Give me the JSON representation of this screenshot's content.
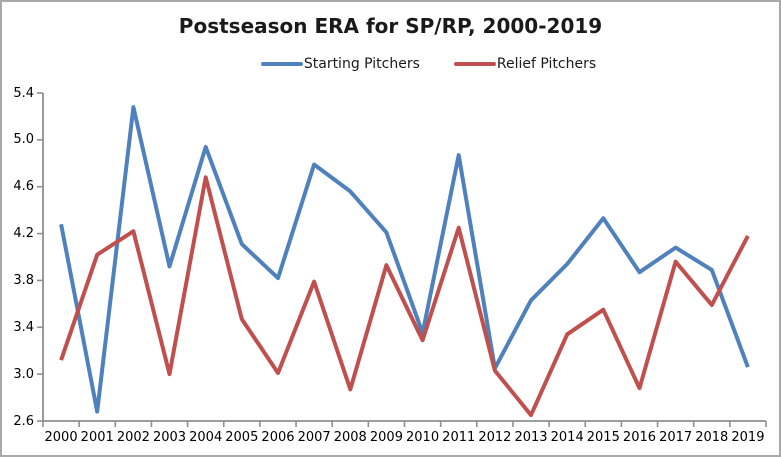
{
  "chart_data": {
    "type": "line",
    "title": "Postseason ERA for SP/RP, 2000-2019",
    "x": [
      2000,
      2001,
      2002,
      2003,
      2004,
      2005,
      2006,
      2007,
      2008,
      2009,
      2010,
      2011,
      2012,
      2013,
      2014,
      2015,
      2016,
      2017,
      2018,
      2019
    ],
    "series": [
      {
        "name": "Starting Pitchers",
        "color": "#4F81BD",
        "values": [
          4.28,
          2.68,
          5.28,
          3.92,
          4.94,
          4.11,
          3.82,
          4.79,
          4.56,
          4.21,
          3.35,
          4.87,
          3.05,
          3.63,
          3.94,
          4.33,
          3.87,
          4.08,
          3.89,
          3.06
        ]
      },
      {
        "name": "Relief Pitchers",
        "color": "#C0504D",
        "values": [
          3.12,
          4.02,
          4.22,
          3.0,
          4.68,
          3.47,
          3.01,
          3.79,
          2.87,
          3.93,
          3.29,
          4.25,
          3.03,
          2.65,
          3.34,
          3.55,
          2.88,
          3.96,
          3.59,
          4.18
        ]
      }
    ],
    "xlabel": "",
    "ylabel": "",
    "ylim": [
      2.6,
      5.4
    ],
    "ytick_labels_top_to_bottom": [
      "5.4",
      "5.0",
      "4.6",
      "4.2",
      "3.8",
      "3.4",
      "3.0",
      "2.6"
    ],
    "grid": false,
    "legend_position": "top",
    "axis_color": "#8f8f8f"
  }
}
